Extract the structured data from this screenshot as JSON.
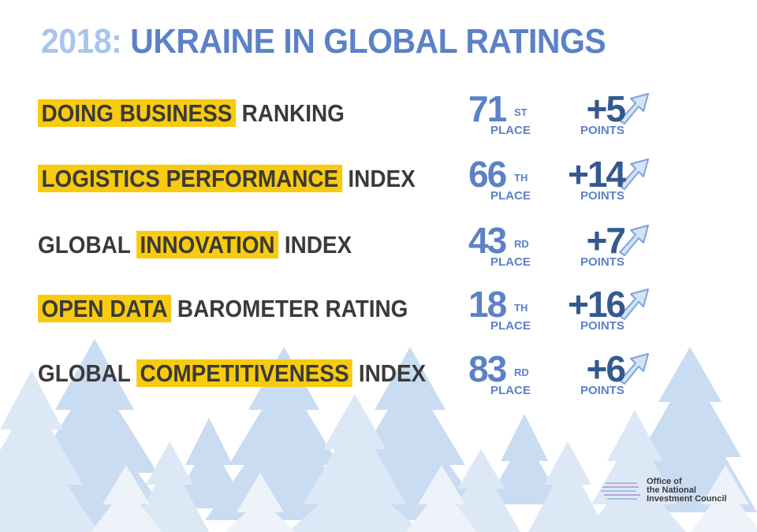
{
  "title": {
    "year": "2018:",
    "main": "UKRAINE IN GLOBAL RATINGS"
  },
  "colors": {
    "accent_yellow": "#f8cb0e",
    "blue": "#5b81c7",
    "dark_blue": "#34598f",
    "light_blue": "#a9c5ec",
    "text_dark": "#3a3a3a"
  },
  "ratings": [
    {
      "pre": "",
      "highlight": "DOING BUSINESS",
      "post": "RANKING",
      "place": "71",
      "suffix": "ST",
      "place_word": "PLACE",
      "points": "+5",
      "points_word": "POINTS",
      "icon": "trend-up-arrow-icon"
    },
    {
      "pre": "",
      "highlight": "LOGISTICS PERFORMANCE",
      "post": "INDEX",
      "place": "66",
      "suffix": "TH",
      "place_word": "PLACE",
      "points": "+14",
      "points_word": "POINTS",
      "icon": "trend-up-arrow-icon"
    },
    {
      "pre": "GLOBAL",
      "highlight": "INNOVATION",
      "post": "INDEX",
      "place": "43",
      "suffix": "RD",
      "place_word": "PLACE",
      "points": "+7",
      "points_word": "POINTS",
      "icon": "trend-up-arrow-icon"
    },
    {
      "pre": "",
      "highlight": "OPEN DATA",
      "post": "BAROMETER RATING",
      "place": "18",
      "suffix": "TH",
      "place_word": "PLACE",
      "points": "+16",
      "points_word": "POINTS",
      "icon": "trend-up-arrow-icon"
    },
    {
      "pre": "GLOBAL",
      "highlight": "COMPETITIVENESS",
      "post": "INDEX",
      "place": "83",
      "suffix": "RD",
      "place_word": "PLACE",
      "points": "+6",
      "points_word": "POINTS",
      "icon": "trend-up-arrow-icon"
    }
  ],
  "logo": {
    "line1": "Office of",
    "line2": "the National",
    "line3": "Investment Council"
  }
}
